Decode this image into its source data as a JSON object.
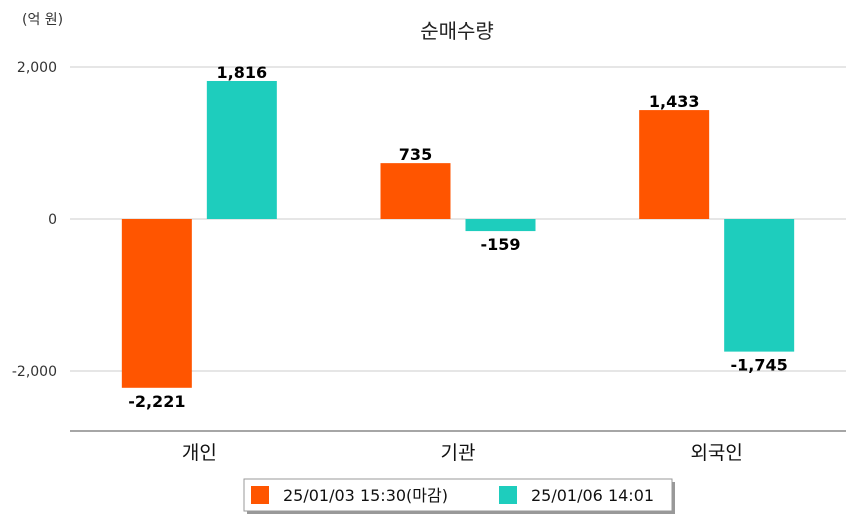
{
  "chart_data": {
    "type": "bar",
    "title": "순매수량",
    "unit_label": "(억 원)",
    "categories": [
      "개인",
      "기관",
      "외국인"
    ],
    "series": [
      {
        "name": "25/01/03 15:30(마감)",
        "color": "#FF5500",
        "values": [
          -2221,
          735,
          1433
        ]
      },
      {
        "name": "25/01/06 14:01",
        "color": "#1ECDBD",
        "values": [
          1816,
          -159,
          -1745
        ]
      }
    ],
    "value_labels": [
      [
        "-2,221",
        "735",
        "1,433"
      ],
      [
        "1,816",
        "-159",
        "-1,745"
      ]
    ],
    "yticks": [
      {
        "value": 2000,
        "label": "2,000"
      },
      {
        "value": 0,
        "label": "0"
      },
      {
        "value": -2000,
        "label": "-2,000"
      }
    ],
    "ylim": [
      -2800,
      2000
    ],
    "grid": true,
    "legend_position": "bottom"
  }
}
